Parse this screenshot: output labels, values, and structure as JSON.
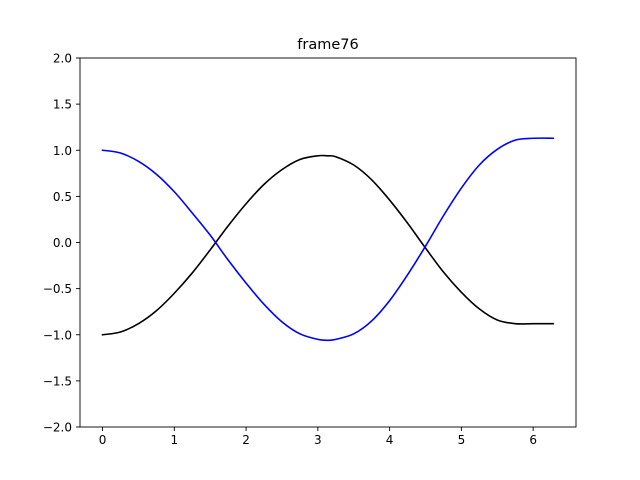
{
  "chart_data": {
    "type": "line",
    "title": "frame76",
    "xlabel": "",
    "ylabel": "",
    "xlim": [
      -0.314,
      6.597
    ],
    "ylim": [
      -2.0,
      2.0
    ],
    "xticks": [
      0,
      1,
      2,
      3,
      4,
      5,
      6
    ],
    "xtick_labels": [
      "0",
      "1",
      "2",
      "3",
      "4",
      "5",
      "6"
    ],
    "yticks": [
      -2.0,
      -1.5,
      -1.0,
      -0.5,
      0.0,
      0.5,
      1.0,
      1.5,
      2.0
    ],
    "ytick_labels": [
      "−2.0",
      "−1.5",
      "−1.0",
      "−0.5",
      "0.0",
      "0.5",
      "1.0",
      "1.5",
      "2.0"
    ],
    "grid": false,
    "series": [
      {
        "color": "#000000",
        "x": [
          0.0,
          0.25,
          0.5,
          0.75,
          1.0,
          1.25,
          1.5,
          1.75,
          2.0,
          2.25,
          2.5,
          2.75,
          3.0,
          3.14,
          3.25,
          3.5,
          3.75,
          4.0,
          4.25,
          4.5,
          4.75,
          5.0,
          5.25,
          5.5,
          5.75,
          6.0,
          6.28
        ],
        "y": [
          -1.0,
          -0.97,
          -0.88,
          -0.74,
          -0.55,
          -0.33,
          -0.08,
          0.18,
          0.42,
          0.63,
          0.79,
          0.9,
          0.94,
          0.94,
          0.93,
          0.84,
          0.68,
          0.46,
          0.21,
          -0.06,
          -0.32,
          -0.54,
          -0.72,
          -0.84,
          -0.88,
          -0.88,
          -0.88
        ]
      },
      {
        "color": "#0000ff",
        "x": [
          0.0,
          0.25,
          0.5,
          0.75,
          1.0,
          1.25,
          1.5,
          1.75,
          2.0,
          2.25,
          2.5,
          2.75,
          3.0,
          3.14,
          3.25,
          3.5,
          3.75,
          4.0,
          4.25,
          4.5,
          4.75,
          5.0,
          5.25,
          5.5,
          5.75,
          6.0,
          6.28
        ],
        "y": [
          1.0,
          0.97,
          0.88,
          0.74,
          0.55,
          0.32,
          0.08,
          -0.19,
          -0.44,
          -0.67,
          -0.86,
          -0.99,
          -1.05,
          -1.06,
          -1.05,
          -0.99,
          -0.85,
          -0.63,
          -0.35,
          -0.04,
          0.29,
          0.59,
          0.84,
          1.01,
          1.11,
          1.13,
          1.13
        ]
      }
    ]
  }
}
